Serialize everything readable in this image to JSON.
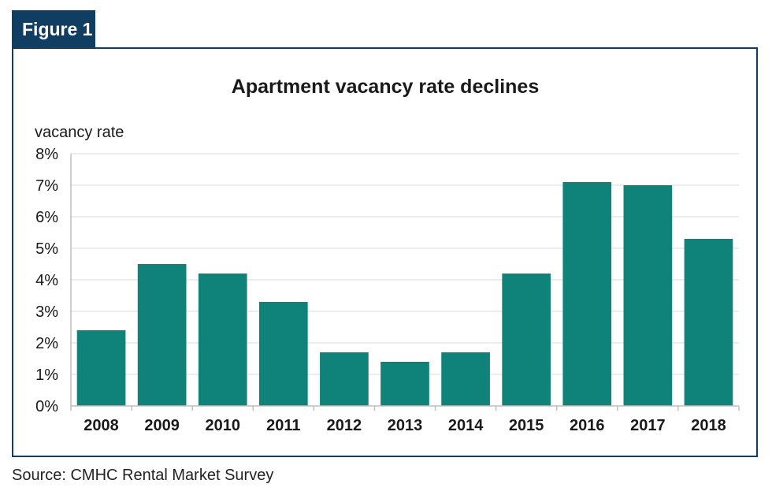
{
  "figure_label": "Figure 1",
  "source": "Source: CMHC Rental Market Survey",
  "colors": {
    "bar": "#0f837a",
    "frame": "#0f3e62",
    "grid": "#d9d9d9"
  },
  "chart_data": {
    "type": "bar",
    "title": "Apartment vacancy rate declines",
    "ylabel": "vacancy rate",
    "xlabel": "",
    "ylim": [
      0,
      8
    ],
    "yticks": [
      "0%",
      "1%",
      "2%",
      "3%",
      "4%",
      "5%",
      "6%",
      "7%",
      "8%"
    ],
    "grid": true,
    "categories": [
      "2008",
      "2009",
      "2010",
      "2011",
      "2012",
      "2013",
      "2014",
      "2015",
      "2016",
      "2017",
      "2018"
    ],
    "values": [
      2.4,
      4.5,
      4.2,
      3.3,
      1.7,
      1.4,
      1.7,
      4.2,
      7.1,
      7.0,
      5.3
    ]
  }
}
